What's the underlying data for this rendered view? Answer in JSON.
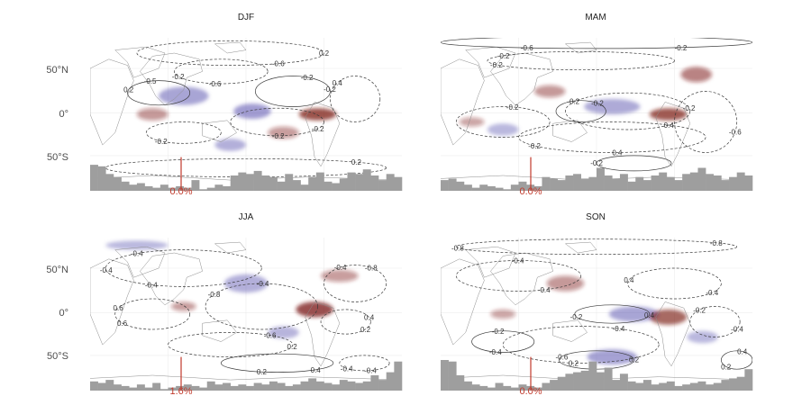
{
  "colors": {
    "positive": "#7b1a16",
    "negative": "#5b55b0",
    "histogram": "#9e9e9e",
    "marker": "#c0392b",
    "contour": "#3a3a3a",
    "land": "#8c8c8c"
  },
  "lat_ticks": [
    "50°N",
    "0°",
    "50°S"
  ],
  "contour_levels": [
    "0.2",
    "0.4",
    "0.6",
    "0.8"
  ],
  "panels": [
    {
      "title": "DJF",
      "marker_label": "0.0%",
      "contour_labels": [
        "0.2",
        "-0.6",
        "0.2",
        "-0.2",
        "-0.2",
        "-0.2",
        "0.4",
        "0.2",
        "-0.6",
        "-0.2",
        "-0.5",
        "-0.2",
        "-0.2"
      ],
      "histogram": [
        0.85,
        0.8,
        0.55,
        0.45,
        0.3,
        0.2,
        0.25,
        0.15,
        0.1,
        0.2,
        0.1,
        0.15,
        0.1,
        0.35,
        0.05,
        0.1,
        0.2,
        0.15,
        0.5,
        0.6,
        0.55,
        0.65,
        0.5,
        0.45,
        0.3,
        0.55,
        0.35,
        0.2,
        0.45,
        0.6,
        0.3,
        0.25,
        0.4,
        0.6,
        0.55,
        0.7,
        0.5,
        0.35,
        0.55,
        0.45
      ]
    },
    {
      "title": "MAM",
      "marker_label": "0.0%",
      "contour_labels": [
        "-0.2",
        "-0.2",
        "-0.2",
        "-0.2",
        "0.4",
        "-0.2",
        "-0.2",
        "-0.6",
        "-0.6",
        "-0.2",
        "-0.2",
        "0.4",
        "-0.2"
      ],
      "histogram": [
        0.35,
        0.4,
        0.3,
        0.2,
        0.1,
        0.2,
        0.15,
        0.1,
        0.05,
        0.2,
        0.3,
        0.2,
        0.15,
        0.45,
        0.4,
        0.35,
        0.5,
        0.55,
        0.4,
        0.45,
        0.75,
        0.5,
        0.4,
        0.55,
        0.3,
        0.45,
        0.35,
        0.5,
        0.6,
        0.45,
        0.35,
        0.55,
        0.6,
        0.75,
        0.55,
        0.5,
        0.35,
        0.45,
        0.6,
        0.5
      ]
    },
    {
      "title": "JJA",
      "marker_label": "1.6%",
      "contour_labels": [
        "-0.4",
        "-0.8",
        "-0.6",
        "0.4",
        "0.6",
        "-0.4",
        "0.4",
        "-0.4",
        "-0.4",
        "-0.4",
        "0.2",
        "0.2",
        "0.6",
        "-0.8",
        "0.2",
        "-0.4",
        "-0.4"
      ],
      "histogram": [
        0.3,
        0.25,
        0.35,
        0.2,
        0.15,
        0.1,
        0.2,
        0.1,
        0.25,
        0.05,
        0.1,
        0.15,
        0.2,
        0.15,
        0.1,
        0.3,
        0.2,
        0.25,
        0.15,
        0.2,
        0.15,
        0.25,
        0.2,
        0.3,
        0.25,
        0.15,
        0.2,
        0.3,
        0.4,
        0.3,
        0.25,
        0.2,
        0.35,
        0.3,
        0.25,
        0.3,
        0.5,
        0.35,
        0.6,
        0.95
      ]
    },
    {
      "title": "SON",
      "marker_label": "0.0%",
      "contour_labels": [
        "-0.8",
        "-0.4",
        "0.4",
        "-0.4",
        "-0.6",
        "-0.4",
        "-0.4",
        "0.2",
        "-0.2",
        "-0.8",
        "-0.4",
        "-0.2",
        "-0.2",
        "0.2",
        "0.2",
        "0.4",
        "0.4",
        "-0.4"
      ],
      "histogram": [
        1.0,
        0.95,
        0.5,
        0.3,
        0.2,
        0.15,
        0.1,
        0.25,
        0.15,
        0.1,
        0.2,
        0.15,
        0.1,
        0.25,
        0.35,
        0.45,
        0.55,
        0.6,
        0.65,
        0.95,
        0.6,
        0.75,
        0.35,
        0.55,
        0.3,
        0.25,
        0.35,
        0.2,
        0.25,
        0.3,
        0.15,
        0.2,
        0.25,
        0.3,
        0.2,
        0.25,
        0.35,
        0.4,
        0.45,
        0.7
      ]
    }
  ]
}
